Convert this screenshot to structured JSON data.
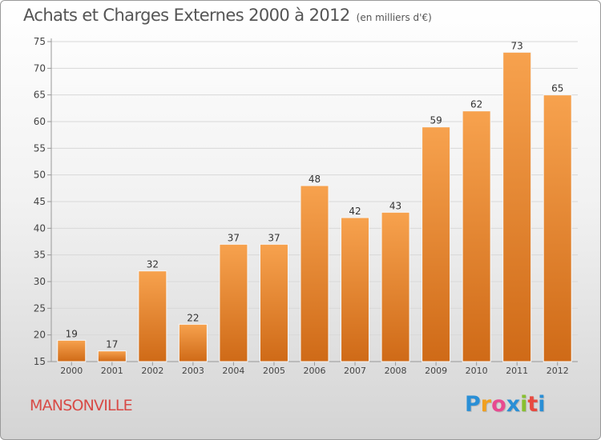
{
  "chart_data": {
    "type": "bar",
    "title": "Achats et Charges Externes 2000 à 2012",
    "unit_note": "(en milliers d'€)",
    "categories": [
      "2000",
      "2001",
      "2002",
      "2003",
      "2004",
      "2005",
      "2006",
      "2007",
      "2008",
      "2009",
      "2010",
      "2011",
      "2012"
    ],
    "values": [
      19,
      17,
      32,
      22,
      37,
      37,
      48,
      42,
      43,
      59,
      62,
      73,
      65
    ],
    "ylim": [
      15,
      75
    ],
    "yticks": [
      15,
      20,
      25,
      30,
      35,
      40,
      45,
      50,
      55,
      60,
      65,
      70,
      75
    ],
    "grid": true,
    "bar_color_top": "#f7a24e",
    "bar_color_bottom": "#cf6a17"
  },
  "commune": "MANSONVILLE",
  "logo": {
    "letters": [
      "P",
      "r",
      "o",
      "x",
      "i",
      "t",
      "i"
    ],
    "colors": [
      "#2a8fd6",
      "#f0a020",
      "#e84a90",
      "#2a8fd6",
      "#88c030",
      "#e84a40",
      "#2a8fd6"
    ]
  }
}
